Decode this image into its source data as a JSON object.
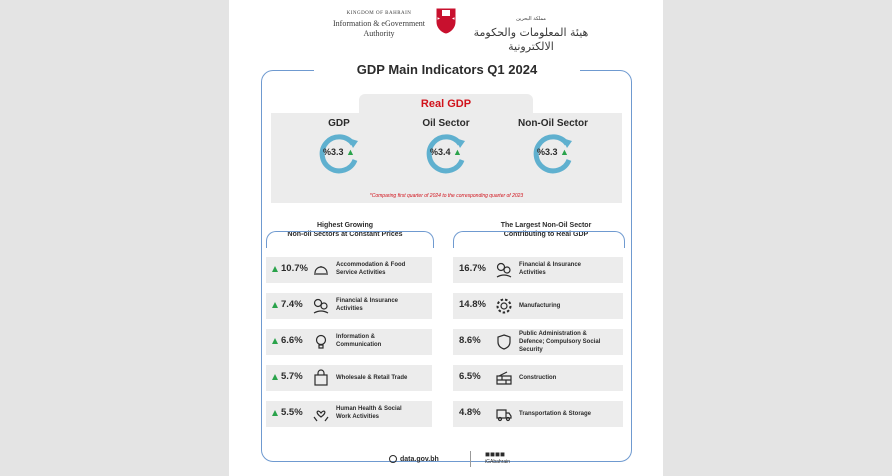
{
  "header": {
    "en_kingdom": "KINGDOM OF BAHRAIN",
    "en_title": "Information & eGovernment Authority",
    "ar_kingdom": "مملكة البحرين",
    "ar_title": "هيئة المعلومات والحكومة الالكترونية"
  },
  "title": "GDP Main Indicators Q1 2024",
  "real_gdp": {
    "label": "Real GDP",
    "indicators": [
      {
        "name": "GDP",
        "value": "%3.3"
      },
      {
        "name": "Oil Sector",
        "value": "%3.4"
      },
      {
        "name": "Non-Oil Sector",
        "value": "%3.3"
      }
    ],
    "note": "*Comparing first quarter of 2024 to the corresponding quarter of 2023"
  },
  "growing": {
    "title_line1": "Highest Growing",
    "title_line2": "Non-oil Sectors at Constant Prices",
    "items": [
      {
        "value": "10.7%",
        "line1": "Accommodation & Food",
        "line2": "Service Activities",
        "icon": "food-cloche-icon"
      },
      {
        "value": "7.4%",
        "line1": "Financial & Insurance",
        "line2": "Activities",
        "icon": "finance-icon"
      },
      {
        "value": "6.6%",
        "line1": "Information &",
        "line2": "Communication",
        "icon": "lightbulb-icon"
      },
      {
        "value": "5.7%",
        "line1": "Wholesale & Retail Trade",
        "line2": "",
        "icon": "shopping-bag-icon"
      },
      {
        "value": "5.5%",
        "line1": "Human Health & Social",
        "line2": "Work Activities",
        "icon": "health-hands-icon"
      }
    ]
  },
  "largest": {
    "title_line1": "The Largest Non-Oil Sector",
    "title_line2": "Contributing to Real GDP",
    "items": [
      {
        "value": "16.7%",
        "line1": "Financial & Insurance",
        "line2": "Activities",
        "line3": "",
        "icon": "finance-icon"
      },
      {
        "value": "14.8%",
        "line1": "Manufacturing",
        "line2": "",
        "line3": "",
        "icon": "gear-icon"
      },
      {
        "value": "8.6%",
        "line1": "Public Administration &",
        "line2": "Defence; Compulsory Social",
        "line3": "Security",
        "icon": "shield-icon"
      },
      {
        "value": "6.5%",
        "line1": "Construction",
        "line2": "",
        "line3": "",
        "icon": "brick-wall-icon"
      },
      {
        "value": "4.8%",
        "line1": "Transportation & Storage",
        "line2": "",
        "line3": "",
        "icon": "truck-icon"
      }
    ]
  },
  "footer": {
    "site": "data.gov.bh",
    "social": "iGAbahrain"
  },
  "colors": {
    "accent": "#6f9ad0",
    "red": "#d1121b",
    "green": "#2aa34b",
    "gauge": "#5fb0cf"
  }
}
